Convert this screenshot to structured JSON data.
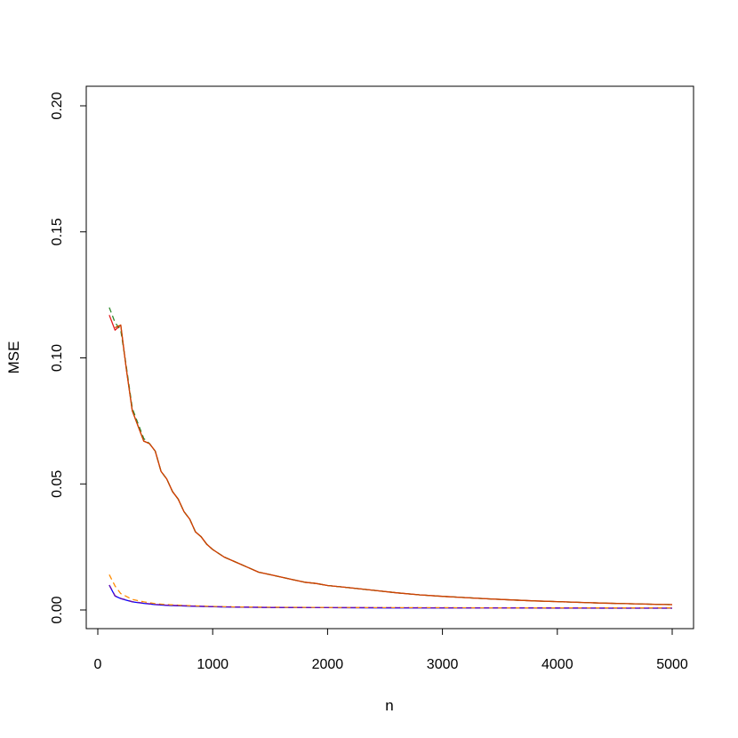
{
  "chart_data": {
    "type": "line",
    "title": "",
    "xlabel": "n",
    "ylabel": "MSE",
    "xlim": [
      0,
      5000
    ],
    "ylim": [
      0,
      0.2
    ],
    "x_ticks": [
      0,
      1000,
      2000,
      3000,
      4000,
      5000
    ],
    "x_tick_labels": [
      "0",
      "1000",
      "2000",
      "3000",
      "4000",
      "5000"
    ],
    "y_ticks": [
      0.0,
      0.05,
      0.1,
      0.15,
      0.2
    ],
    "y_tick_labels": [
      "0.00",
      "0.05",
      "0.10",
      "0.15",
      "0.20"
    ],
    "grid": false,
    "legend": "none",
    "series": [
      {
        "color": "#e31a1c",
        "dash": "solid",
        "x": [
          100,
          150,
          200,
          250,
          300,
          350,
          400,
          450,
          500,
          550,
          600,
          650,
          700,
          750,
          800,
          850,
          900,
          950,
          1000,
          1100,
          1200,
          1300,
          1400,
          1500,
          1600,
          1700,
          1800,
          1900,
          2000,
          2200,
          2400,
          2600,
          2800,
          3000,
          3200,
          3400,
          3600,
          3800,
          4000,
          4200,
          4400,
          4600,
          4800,
          5000
        ],
        "y": [
          0.117,
          0.111,
          0.113,
          0.095,
          0.079,
          0.073,
          0.067,
          0.066,
          0.063,
          0.055,
          0.052,
          0.047,
          0.044,
          0.039,
          0.036,
          0.031,
          0.029,
          0.026,
          0.024,
          0.021,
          0.019,
          0.017,
          0.015,
          0.014,
          0.013,
          0.012,
          0.011,
          0.0105,
          0.0097,
          0.0088,
          0.0078,
          0.0068,
          0.006,
          0.0054,
          0.0049,
          0.0044,
          0.004,
          0.0036,
          0.0033,
          0.003,
          0.0027,
          0.0025,
          0.0023,
          0.0021
        ]
      },
      {
        "color": "#2e8b2e",
        "dash": "dashed",
        "x": [
          100,
          150,
          200,
          250,
          300,
          350,
          400,
          450,
          500,
          550,
          600,
          650,
          700,
          750,
          800,
          850,
          900,
          950,
          1000,
          1100,
          1200,
          1300,
          1400,
          1500,
          1600,
          1700,
          1800,
          1900,
          2000,
          2200,
          2400,
          2600,
          2800,
          3000,
          3200,
          3400,
          3600,
          3800,
          4000,
          4200,
          4400,
          4600,
          4800,
          5000
        ],
        "y": [
          0.12,
          0.114,
          0.111,
          0.096,
          0.08,
          0.074,
          0.068,
          0.066,
          0.063,
          0.055,
          0.052,
          0.047,
          0.044,
          0.039,
          0.036,
          0.031,
          0.029,
          0.026,
          0.024,
          0.021,
          0.019,
          0.017,
          0.015,
          0.014,
          0.013,
          0.012,
          0.011,
          0.0105,
          0.0097,
          0.0088,
          0.0078,
          0.0068,
          0.006,
          0.0054,
          0.0049,
          0.0044,
          0.004,
          0.0036,
          0.0033,
          0.003,
          0.0027,
          0.0025,
          0.0023,
          0.0021
        ]
      },
      {
        "color": "#cc4400",
        "dash": "solid",
        "x": [
          150,
          200,
          250,
          300,
          350,
          400,
          450,
          500,
          550,
          600,
          650,
          700,
          750,
          800,
          850,
          900,
          950,
          1000,
          1100,
          1200,
          1300,
          1400,
          1500,
          1600,
          1700,
          1800,
          1900,
          2000,
          2200,
          2400,
          2600,
          2800,
          3000,
          3200,
          3400,
          3600,
          3800,
          4000,
          4200,
          4400,
          4600,
          4800,
          5000
        ],
        "y": [
          0.112,
          0.113,
          0.095,
          0.079,
          0.073,
          0.067,
          0.066,
          0.063,
          0.055,
          0.052,
          0.047,
          0.044,
          0.039,
          0.036,
          0.031,
          0.029,
          0.026,
          0.024,
          0.021,
          0.019,
          0.017,
          0.015,
          0.014,
          0.013,
          0.012,
          0.011,
          0.0105,
          0.0097,
          0.0088,
          0.0078,
          0.0068,
          0.006,
          0.0054,
          0.0049,
          0.0044,
          0.004,
          0.0036,
          0.0033,
          0.003,
          0.0027,
          0.0025,
          0.0023,
          0.0021
        ]
      },
      {
        "color": "#0000ff",
        "dash": "solid",
        "x": [
          100,
          150,
          200,
          300,
          400,
          500,
          600,
          800,
          1000,
          1200,
          1500,
          2000,
          2500,
          3000,
          3500,
          4000,
          4500,
          5000
        ],
        "y": [
          0.0098,
          0.0055,
          0.0045,
          0.0032,
          0.0026,
          0.0021,
          0.0018,
          0.0015,
          0.0013,
          0.0011,
          0.001,
          0.0009,
          0.0008,
          0.0008,
          0.0008,
          0.0007,
          0.0007,
          0.0007
        ]
      },
      {
        "color": "#ff8c00",
        "dash": "dashed",
        "x": [
          100,
          150,
          200,
          300,
          400,
          500,
          600,
          800,
          1000,
          1200,
          1500,
          2000,
          2500,
          3000,
          3500,
          4000,
          4500,
          5000
        ],
        "y": [
          0.014,
          0.0095,
          0.0065,
          0.0042,
          0.0032,
          0.0025,
          0.0021,
          0.0017,
          0.0014,
          0.0012,
          0.0011,
          0.001,
          0.0009,
          0.0009,
          0.0008,
          0.0008,
          0.0008,
          0.0008
        ]
      },
      {
        "color": "#6a0dad",
        "dash": "dashed",
        "x": [
          100,
          150,
          200,
          300,
          400,
          500,
          600,
          800,
          1000,
          1200,
          1500,
          2000,
          2500,
          3000,
          3500,
          4000,
          4500,
          5000
        ],
        "y": [
          0.0099,
          0.0056,
          0.0046,
          0.0033,
          0.0027,
          0.0022,
          0.0019,
          0.0016,
          0.0013,
          0.0012,
          0.001,
          0.0009,
          0.0009,
          0.0008,
          0.0008,
          0.0008,
          0.0007,
          0.0007
        ]
      }
    ]
  }
}
